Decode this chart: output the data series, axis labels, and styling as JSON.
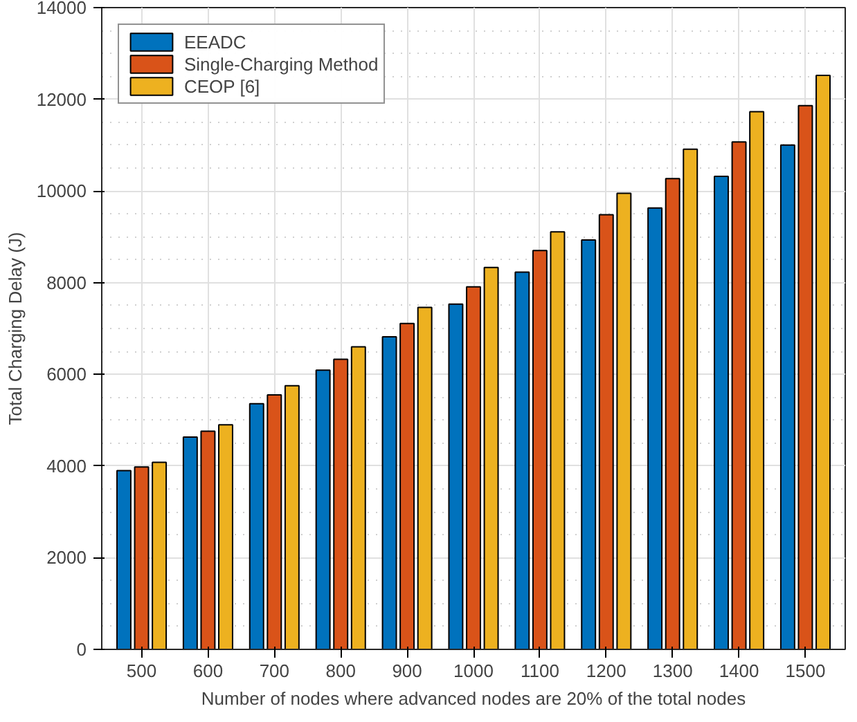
{
  "chart_data": {
    "type": "bar",
    "xlabel": "Number of nodes where advanced nodes are 20% of the total nodes",
    "ylabel": "Total Charging Delay (J)",
    "categories": [
      "500",
      "600",
      "700",
      "800",
      "900",
      "1000",
      "1100",
      "1200",
      "1300",
      "1400",
      "1500"
    ],
    "series": [
      {
        "name": "EEADC",
        "color": "#0072bd",
        "values": [
          3900,
          4630,
          5360,
          6090,
          6820,
          7530,
          8230,
          8930,
          9630,
          10320,
          11000
        ]
      },
      {
        "name": "Single-Charging Method",
        "color": "#d95319",
        "values": [
          3980,
          4760,
          5550,
          6330,
          7110,
          7910,
          8700,
          9480,
          10270,
          11070,
          11860
        ]
      },
      {
        "name": "CEOP [6]",
        "color": "#edb120",
        "values": [
          4080,
          4900,
          5750,
          6600,
          7460,
          8330,
          9110,
          9950,
          10910,
          11730,
          12520
        ]
      }
    ],
    "ylim": [
      0,
      14000
    ],
    "yticks": [
      0,
      2000,
      4000,
      6000,
      8000,
      10000,
      12000,
      14000
    ],
    "grid": true,
    "legend": "top left"
  }
}
